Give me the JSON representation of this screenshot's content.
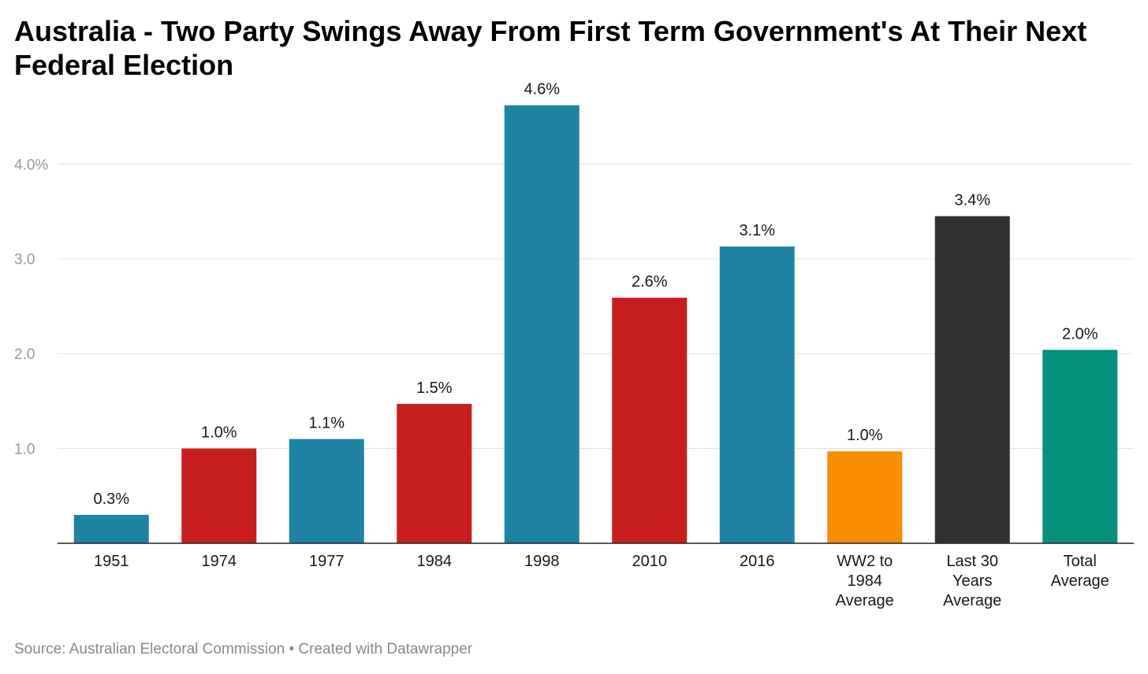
{
  "title": "Australia - Two Party Swings Away From First Term Government's At Their Next Federal Election",
  "chart_data": {
    "type": "bar",
    "categories": [
      [
        "1951"
      ],
      [
        "1974"
      ],
      [
        "1977"
      ],
      [
        "1984"
      ],
      [
        "1998"
      ],
      [
        "2010"
      ],
      [
        "2016"
      ],
      [
        "WW2 to",
        "1984",
        "Average"
      ],
      [
        "Last 30",
        "Years",
        "Average"
      ],
      [
        "Total",
        "Average"
      ]
    ],
    "values": [
      0.3,
      1.0,
      1.1,
      1.47,
      4.62,
      2.59,
      3.13,
      0.97,
      3.45,
      2.04
    ],
    "value_labels": [
      "0.3%",
      "1.0%",
      "1.1%",
      "1.5%",
      "4.6%",
      "2.6%",
      "3.1%",
      "1.0%",
      "3.4%",
      "2.0%"
    ],
    "colors": [
      "#1f83a4",
      "#c71e1d",
      "#1f83a4",
      "#c71e1d",
      "#1f83a4",
      "#c71e1d",
      "#1f83a4",
      "#f98d01",
      "#333032",
      "#05917a"
    ],
    "y_ticks": [
      1.0,
      2.0,
      3.0,
      4.0
    ],
    "y_tick_labels": [
      "1.0",
      "2.0",
      "3.0",
      "4.0%"
    ],
    "ylim": [
      0,
      4.75
    ],
    "grid": true,
    "xlabel": "",
    "ylabel": ""
  },
  "footer": {
    "source": "Source: Australian Electoral Commission",
    "separator": " • ",
    "credit": "Created with Datawrapper"
  }
}
